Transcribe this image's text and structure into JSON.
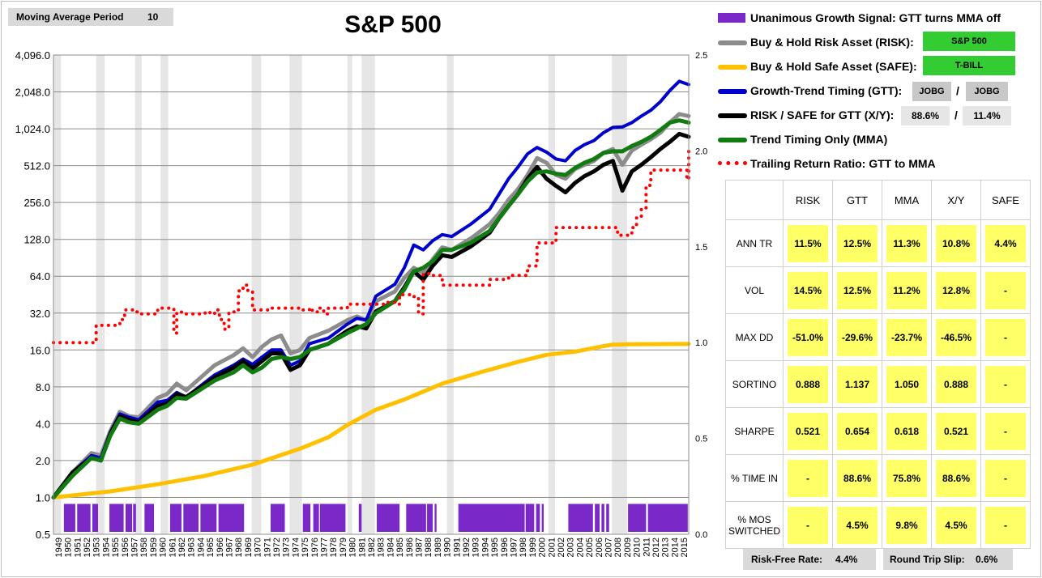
{
  "moving_average": {
    "label": "Moving Average Period",
    "value": "10"
  },
  "title": "S&P 500",
  "legend": [
    {
      "key": "gtt_signal",
      "label": "Unanimous Growth Signal: GTT turns MMA off",
      "color": "#7b28c8"
    },
    {
      "key": "risk",
      "label": "Buy & Hold Risk Asset (RISK):",
      "color": "#8c8c8c"
    },
    {
      "key": "safe",
      "label": "Buy & Hold Safe Asset (SAFE):",
      "color": "#ffc000"
    },
    {
      "key": "gtt",
      "label": "Growth-Trend Timing (GTT):",
      "color": "#0000cc"
    },
    {
      "key": "xy",
      "label": "RISK / SAFE for GTT (X/Y):",
      "color": "#000000"
    },
    {
      "key": "mma",
      "label": "Trend Timing Only (MMA)",
      "color": "#117a11"
    },
    {
      "key": "ratio",
      "label": "Trailing Return Ratio: GTT to MMA",
      "color": "#ff0000"
    }
  ],
  "tags": {
    "risk_asset": "S&P 500",
    "safe_asset": "T-BILL",
    "gtt_left": "JOBG",
    "gtt_sep": "/",
    "gtt_right": "JOBG",
    "xy_left": "88.6%",
    "xy_sep": "/",
    "xy_right": "11.4%"
  },
  "stats": {
    "columns": [
      "RISK",
      "GTT",
      "MMA",
      "X/Y",
      "SAFE"
    ],
    "rows": [
      {
        "label": "ANN TR",
        "values": [
          "11.5%",
          "12.5%",
          "11.3%",
          "10.8%",
          "4.4%"
        ]
      },
      {
        "label": "VOL",
        "values": [
          "14.5%",
          "12.5%",
          "11.2%",
          "12.8%",
          "-"
        ]
      },
      {
        "label": "MAX DD",
        "values": [
          "-51.0%",
          "-29.6%",
          "-23.7%",
          "-46.5%",
          "-"
        ]
      },
      {
        "label": "SORTINO",
        "values": [
          "0.888",
          "1.137",
          "1.050",
          "0.888",
          "-"
        ]
      },
      {
        "label": "SHARPE",
        "values": [
          "0.521",
          "0.654",
          "0.618",
          "0.521",
          "-"
        ]
      },
      {
        "label": "% TIME IN",
        "values": [
          "-",
          "88.6%",
          "75.8%",
          "88.6%",
          "-"
        ]
      },
      {
        "label": "% MOS\nSWITCHED",
        "values": [
          "-",
          "4.5%",
          "9.8%",
          "4.5%",
          "-"
        ]
      }
    ]
  },
  "footer": {
    "risk_free_label": "Risk-Free Rate:",
    "risk_free_value": "4.4%",
    "slip_label": "Round Trip Slip:",
    "slip_value": "0.6%"
  },
  "chart_data": {
    "type": "line",
    "title": "S&P 500",
    "x_range": [
      1949,
      2016
    ],
    "y_left_scale": "log2",
    "y_left_ticks": [
      "0.5",
      "1.0",
      "2.0",
      "4.0",
      "8.0",
      "16.0",
      "32.0",
      "64.0",
      "128.0",
      "256.0",
      "512.0",
      "1,024.0",
      "2,048.0",
      "4,096.0"
    ],
    "y_left_range": [
      0.5,
      4096
    ],
    "y_right_ticks": [
      "0.0",
      "0.5",
      "1.0",
      "1.5",
      "2.0",
      "2.5"
    ],
    "y_right_range": [
      0,
      2.5
    ],
    "x_ticks": [
      "1949",
      "1950",
      "1951",
      "1952",
      "1953",
      "1954",
      "1955",
      "1956",
      "1957",
      "1958",
      "1959",
      "1960",
      "1961",
      "1962",
      "1963",
      "1964",
      "1965",
      "1966",
      "1967",
      "1968",
      "1969",
      "1970",
      "1971",
      "1972",
      "1973",
      "1974",
      "1975",
      "1976",
      "1977",
      "1978",
      "1979",
      "1980",
      "1981",
      "1982",
      "1983",
      "1984",
      "1985",
      "1986",
      "1987",
      "1988",
      "1989",
      "1990",
      "1991",
      "1992",
      "1993",
      "1994",
      "1995",
      "1996",
      "1997",
      "1998",
      "1999",
      "2000",
      "2001",
      "2002",
      "2003",
      "2004",
      "2005",
      "2006",
      "2007",
      "2008",
      "2009",
      "2010",
      "2011",
      "2012",
      "2013",
      "2014",
      "2015"
    ],
    "recessions": [
      [
        1949.0,
        1949.8
      ],
      [
        1953.5,
        1954.4
      ],
      [
        1957.6,
        1958.3
      ],
      [
        1960.3,
        1961.1
      ],
      [
        1969.9,
        1970.9
      ],
      [
        1973.9,
        1975.2
      ],
      [
        1980.0,
        1980.5
      ],
      [
        1981.5,
        1982.9
      ],
      [
        1990.5,
        1991.2
      ],
      [
        2001.2,
        2001.9
      ],
      [
        2007.9,
        2009.5
      ]
    ],
    "signal_periods": [
      [
        1950.1,
        1951.3
      ],
      [
        1951.5,
        1952.9
      ],
      [
        1953.1,
        1953.7
      ],
      [
        1954.9,
        1956.4
      ],
      [
        1956.6,
        1957.3
      ],
      [
        1957.4,
        1957.7
      ],
      [
        1958.6,
        1959.6
      ],
      [
        1961.3,
        1962.5
      ],
      [
        1962.7,
        1964.3
      ],
      [
        1964.5,
        1966.2
      ],
      [
        1966.4,
        1969.1
      ],
      [
        1971.9,
        1973.4
      ],
      [
        1975.3,
        1976.1
      ],
      [
        1976.4,
        1977.0
      ],
      [
        1977.1,
        1979.8
      ],
      [
        1981.2,
        1981.5
      ],
      [
        1983.1,
        1985.5
      ],
      [
        1986.2,
        1988.3
      ],
      [
        1988.4,
        1989.0
      ],
      [
        1989.2,
        1989.4
      ],
      [
        1991.7,
        1998.7
      ],
      [
        1998.8,
        1999.7
      ],
      [
        1999.9,
        2000.3
      ],
      [
        2000.5,
        2000.7
      ],
      [
        2003.3,
        2005.9
      ],
      [
        2006.1,
        2006.6
      ],
      [
        2006.8,
        2007.1
      ],
      [
        2007.3,
        2007.6
      ],
      [
        2009.6,
        2011.5
      ],
      [
        2011.7,
        2015.9
      ]
    ],
    "series": [
      {
        "name": "Buy & Hold Risk Asset (RISK):",
        "axis": "left",
        "x": [
          1949,
          1951,
          1953,
          1954,
          1955,
          1956,
          1957,
          1958,
          1960,
          1961,
          1962,
          1963,
          1966,
          1968,
          1969,
          1970,
          1971,
          1972,
          1973,
          1974,
          1975,
          1976,
          1978,
          1980,
          1981,
          1982,
          1983,
          1985,
          1986,
          1987,
          1988,
          1989,
          1990,
          1991,
          1993,
          1995,
          1996,
          1997,
          1998,
          1999,
          2000,
          2001,
          2002,
          2003,
          2004,
          2005,
          2006,
          2007,
          2008,
          2009,
          2010,
          2011,
          2012,
          2013,
          2014,
          2015,
          2016
        ],
        "values": [
          1,
          1.6,
          2.3,
          2.2,
          3.5,
          5,
          4.6,
          4.5,
          6.5,
          7,
          8.5,
          7.5,
          12,
          14.5,
          16.5,
          14,
          17,
          19.5,
          21,
          15,
          16,
          20,
          23,
          28,
          30,
          28,
          40,
          48,
          62,
          75,
          68,
          88,
          110,
          105,
          130,
          170,
          210,
          270,
          330,
          430,
          590,
          540,
          430,
          400,
          480,
          520,
          560,
          650,
          700,
          520,
          680,
          760,
          840,
          950,
          1150,
          1350,
          1300
        ]
      },
      {
        "name": "Buy & Hold Safe Asset (SAFE):",
        "axis": "left",
        "x": [
          1949,
          1955,
          1960,
          1965,
          1970,
          1975,
          1978,
          1980,
          1983,
          1986,
          1990,
          1994,
          1998,
          2001,
          2004,
          2007,
          2008,
          2010,
          2016
        ],
        "values": [
          1,
          1.12,
          1.28,
          1.5,
          1.85,
          2.5,
          3.1,
          3.9,
          5.2,
          6.3,
          8.5,
          10.5,
          12.8,
          14.6,
          15.5,
          17.2,
          17.7,
          17.8,
          17.9
        ]
      },
      {
        "name": "Growth-Trend Timing (GTT):",
        "axis": "left",
        "x": [
          1949,
          1951,
          1953,
          1954,
          1955,
          1956,
          1957,
          1958,
          1960,
          1961,
          1962,
          1963,
          1966,
          1968,
          1969,
          1970,
          1971,
          1972,
          1973,
          1974,
          1975,
          1976,
          1978,
          1980,
          1981,
          1982,
          1983,
          1985,
          1986,
          1987,
          1988,
          1989,
          1990,
          1991,
          1993,
          1995,
          1996,
          1997,
          1998,
          1999,
          2000,
          2001,
          2002,
          2003,
          2004,
          2005,
          2006,
          2007,
          2008,
          2009,
          2010,
          2011,
          2012,
          2013,
          2014,
          2015,
          2016
        ],
        "values": [
          1,
          1.6,
          2.2,
          2.1,
          3.4,
          4.8,
          4.5,
          4.3,
          6.0,
          6.2,
          7.2,
          6.6,
          10,
          12,
          13.5,
          12.2,
          14,
          16,
          16,
          12,
          13,
          18,
          20,
          26,
          29,
          28,
          44,
          55,
          75,
          115,
          105,
          125,
          140,
          135,
          170,
          225,
          300,
          400,
          500,
          640,
          720,
          660,
          580,
          560,
          680,
          760,
          820,
          950,
          1050,
          1060,
          1150,
          1300,
          1450,
          1700,
          2100,
          2500,
          2350
        ]
      },
      {
        "name": "RISK / SAFE for GTT (X/Y):",
        "axis": "left",
        "x": [
          1949,
          1951,
          1953,
          1954,
          1955,
          1956,
          1957,
          1958,
          1960,
          1961,
          1962,
          1963,
          1966,
          1968,
          1969,
          1970,
          1971,
          1972,
          1973,
          1974,
          1975,
          1976,
          1978,
          1980,
          1981,
          1982,
          1983,
          1985,
          1986,
          1987,
          1988,
          1989,
          1990,
          1991,
          1993,
          1995,
          1996,
          1997,
          1998,
          1999,
          2000,
          2001,
          2002,
          2003,
          2004,
          2005,
          2006,
          2007,
          2008,
          2009,
          2010,
          2011,
          2012,
          2013,
          2014,
          2015,
          2016
        ],
        "values": [
          1,
          1.6,
          2.1,
          2.0,
          3.3,
          4.6,
          4.3,
          4.1,
          5.6,
          5.8,
          7.0,
          6.6,
          9.5,
          11.5,
          13,
          11.3,
          13,
          15,
          15,
          11,
          12,
          16,
          18,
          23,
          25,
          24,
          33,
          40,
          52,
          70,
          60,
          78,
          95,
          92,
          112,
          145,
          190,
          240,
          300,
          400,
          500,
          400,
          350,
          310,
          370,
          420,
          460,
          520,
          560,
          320,
          460,
          520,
          600,
          700,
          800,
          930,
          880
        ]
      },
      {
        "name": "Trend Timing Only (MMA)",
        "axis": "left",
        "x": [
          1949,
          1951,
          1953,
          1954,
          1955,
          1956,
          1957,
          1958,
          1960,
          1961,
          1962,
          1963,
          1966,
          1968,
          1969,
          1970,
          1971,
          1972,
          1973,
          1974,
          1975,
          1976,
          1978,
          1980,
          1981,
          1982,
          1983,
          1985,
          1986,
          1987,
          1988,
          1989,
          1990,
          1991,
          1993,
          1995,
          1996,
          1997,
          1998,
          1999,
          2000,
          2001,
          2002,
          2003,
          2004,
          2005,
          2006,
          2007,
          2008,
          2009,
          2010,
          2011,
          2012,
          2013,
          2014,
          2015,
          2016
        ],
        "values": [
          1,
          1.5,
          2.1,
          2.0,
          3.2,
          4.4,
          4.1,
          4.0,
          5.2,
          5.6,
          6.5,
          6.4,
          9,
          10.5,
          12,
          10.5,
          11.5,
          13.5,
          14,
          13.5,
          14,
          16,
          18,
          22,
          24,
          26,
          32,
          40,
          50,
          70,
          75,
          85,
          105,
          105,
          120,
          150,
          190,
          240,
          300,
          380,
          450,
          460,
          440,
          430,
          490,
          540,
          580,
          650,
          670,
          670,
          740,
          800,
          880,
          1000,
          1150,
          1200,
          1150
        ]
      },
      {
        "name": "Trailing Return Ratio: GTT to MMA",
        "axis": "right",
        "dotted": true,
        "x": [
          1949,
          1953,
          1953.5,
          1954.5,
          1956,
          1956.5,
          1957.5,
          1958,
          1959,
          1960,
          1960.5,
          1961.5,
          1961.7,
          1962,
          1962.5,
          1964,
          1965,
          1965.5,
          1966,
          1966.5,
          1967,
          1967.5,
          1968,
          1968.5,
          1969,
          1969.5,
          1970,
          1972,
          1975,
          1976,
          1976.3,
          1977,
          1977.5,
          1978,
          1979,
          1980,
          1981,
          1982,
          1983,
          1984,
          1985,
          1985.5,
          1986.5,
          1987,
          1987.5,
          1988,
          1988.2,
          1989,
          1990,
          1991,
          1992,
          1993,
          1994,
          1995,
          1996,
          1997,
          1998,
          1999,
          1999.5,
          2000,
          2001,
          2002,
          2003,
          2005,
          2007,
          2008,
          2008.5,
          2010,
          2010.5,
          2011,
          2011.5,
          2012,
          2014,
          2015.5,
          2015.8,
          2016
        ],
        "values": [
          1,
          1,
          1.09,
          1.09,
          1.12,
          1.17,
          1.16,
          1.15,
          1.15,
          1.18,
          1.18,
          1.18,
          1.05,
          1.16,
          1.15,
          1.15,
          1.16,
          1.15,
          1.17,
          1.12,
          1.07,
          1.16,
          1.16,
          1.27,
          1.3,
          1.27,
          1.17,
          1.18,
          1.17,
          1.18,
          1.16,
          1.18,
          1.15,
          1.18,
          1.18,
          1.2,
          1.2,
          1.2,
          1.2,
          1.21,
          1.2,
          1.25,
          1.25,
          1.24,
          1.15,
          1.36,
          1.36,
          1.35,
          1.3,
          1.3,
          1.3,
          1.3,
          1.3,
          1.33,
          1.33,
          1.35,
          1.35,
          1.4,
          1.4,
          1.52,
          1.52,
          1.6,
          1.6,
          1.6,
          1.6,
          1.6,
          1.56,
          1.6,
          1.65,
          1.7,
          1.82,
          1.9,
          1.9,
          1.9,
          1.85,
          2.02
        ]
      }
    ]
  }
}
